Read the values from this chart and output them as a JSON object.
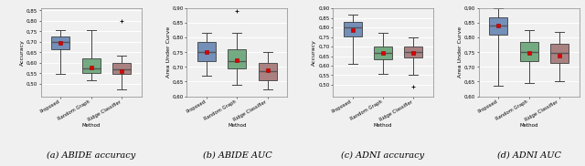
{
  "subplot_titles": [
    "(a) ABIDE accuracy",
    "(b) ABIDE AUC",
    "(c) ADNI accuracy",
    "(d) ADNI AUC"
  ],
  "ylabels": [
    "Accuracy",
    "Area Under Curve",
    "Accuracy",
    "Area Under Curve"
  ],
  "xlabel": "Method",
  "categories": [
    "Proposed",
    "Random Graph",
    "Ridge Classifier"
  ],
  "colors": [
    "#5577aa",
    "#559966",
    "#996666"
  ],
  "box_data": {
    "abide_acc": {
      "proposed": {
        "whislo": 0.545,
        "q1": 0.665,
        "med": 0.7,
        "q3": 0.725,
        "whishi": 0.755,
        "mean": 0.693,
        "fliers": []
      },
      "random": {
        "whislo": 0.515,
        "q1": 0.55,
        "med": 0.575,
        "q3": 0.62,
        "whishi": 0.755,
        "mean": 0.578,
        "fliers": []
      },
      "ridge": {
        "whislo": 0.475,
        "q1": 0.548,
        "med": 0.568,
        "q3": 0.598,
        "whishi": 0.635,
        "mean": 0.56,
        "fliers": [
          0.8
        ]
      }
    },
    "abide_auc": {
      "proposed": {
        "whislo": 0.67,
        "q1": 0.72,
        "med": 0.75,
        "q3": 0.785,
        "whishi": 0.815,
        "mean": 0.75,
        "fliers": []
      },
      "random": {
        "whislo": 0.64,
        "q1": 0.695,
        "med": 0.72,
        "q3": 0.76,
        "whishi": 0.815,
        "mean": 0.722,
        "fliers": [
          0.89
        ]
      },
      "ridge": {
        "whislo": 0.625,
        "q1": 0.655,
        "med": 0.685,
        "q3": 0.715,
        "whishi": 0.75,
        "mean": 0.688,
        "fliers": []
      }
    },
    "adni_acc": {
      "proposed": {
        "whislo": 0.61,
        "q1": 0.755,
        "med": 0.8,
        "q3": 0.828,
        "whishi": 0.865,
        "mean": 0.785,
        "fliers": []
      },
      "random": {
        "whislo": 0.555,
        "q1": 0.635,
        "med": 0.668,
        "q3": 0.7,
        "whishi": 0.77,
        "mean": 0.665,
        "fliers": []
      },
      "ridge": {
        "whislo": 0.55,
        "q1": 0.645,
        "med": 0.67,
        "q3": 0.7,
        "whishi": 0.75,
        "mean": 0.665,
        "fliers": [
          0.49
        ]
      }
    },
    "adni_auc": {
      "proposed": {
        "whislo": 0.635,
        "q1": 0.81,
        "med": 0.84,
        "q3": 0.87,
        "whishi": 0.9,
        "mean": 0.84,
        "fliers": []
      },
      "random": {
        "whislo": 0.645,
        "q1": 0.72,
        "med": 0.75,
        "q3": 0.785,
        "whishi": 0.825,
        "mean": 0.748,
        "fliers": []
      },
      "ridge": {
        "whislo": 0.65,
        "q1": 0.715,
        "med": 0.748,
        "q3": 0.78,
        "whishi": 0.82,
        "mean": 0.74,
        "fliers": []
      }
    }
  },
  "ylims": {
    "abide_acc": [
      0.44,
      0.86
    ],
    "abide_auc": [
      0.6,
      0.9
    ],
    "adni_acc": [
      0.44,
      0.9
    ],
    "adni_auc": [
      0.6,
      0.9
    ]
  },
  "yticks": {
    "abide_acc": [
      0.5,
      0.55,
      0.6,
      0.65,
      0.7,
      0.75,
      0.8,
      0.85
    ],
    "abide_auc": [
      0.6,
      0.65,
      0.7,
      0.75,
      0.8,
      0.85,
      0.9
    ],
    "adni_acc": [
      0.5,
      0.55,
      0.6,
      0.65,
      0.7,
      0.75,
      0.8,
      0.85,
      0.9
    ],
    "adni_auc": [
      0.6,
      0.65,
      0.7,
      0.75,
      0.8,
      0.85,
      0.9
    ]
  },
  "background_color": "#f0f0f0",
  "median_line_color": "#555555",
  "mean_marker_color": "#dd0000",
  "box_edge_color": "#333333",
  "whisker_color": "#444444",
  "grid_color": "#ffffff"
}
